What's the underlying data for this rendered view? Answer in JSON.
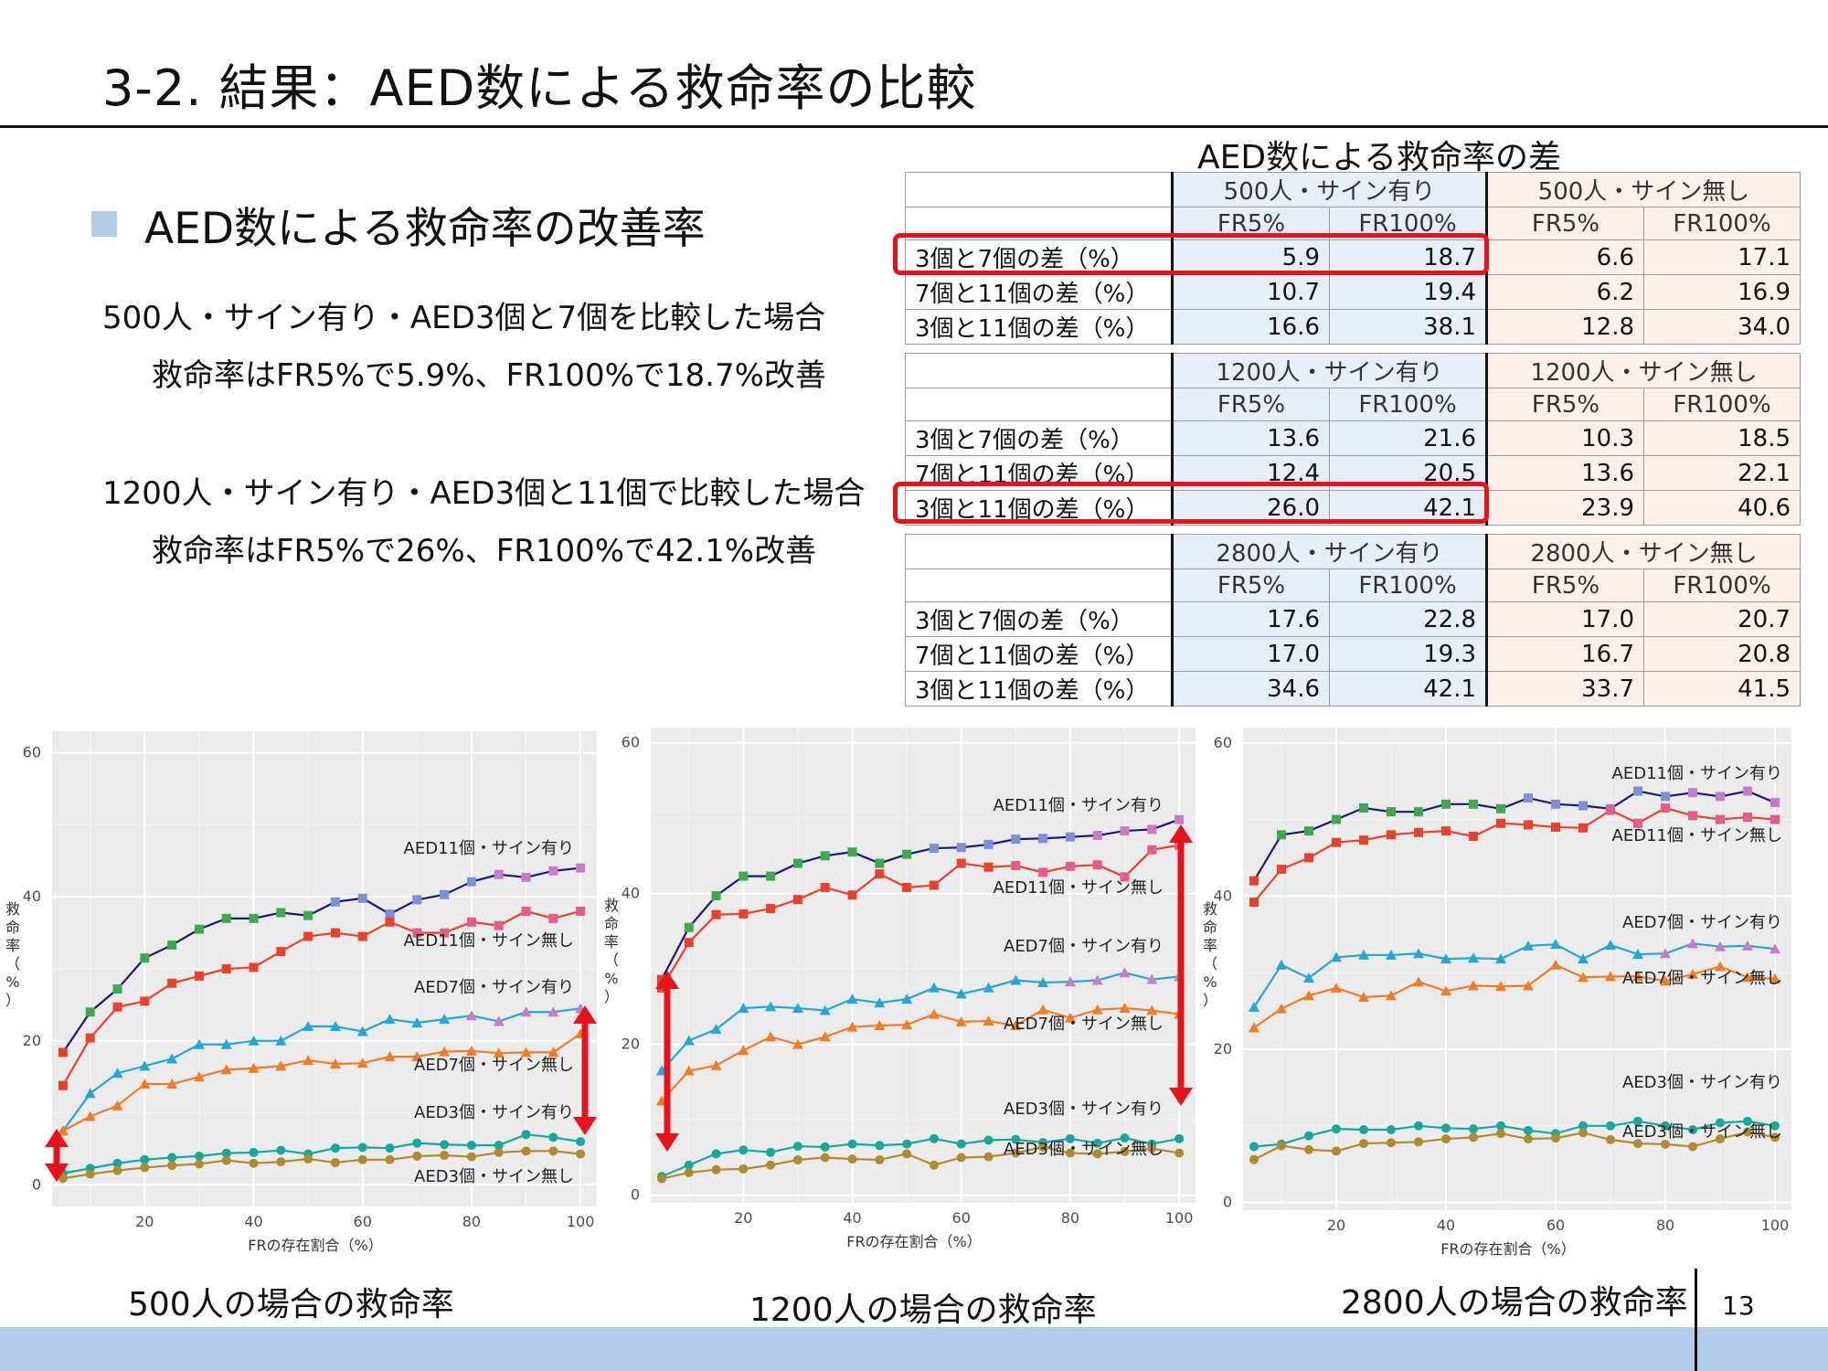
{
  "slide": {
    "title": "3-2. 結果：AED数による救命率の比較",
    "bullet": "AED数による救命率の改善率",
    "paragraphs": [
      "500人・サイン有り・AED3個と7個を比較した場合",
      "救命率はFR5%で5.9%、FR100%で18.7%改善",
      "1200人・サイン有り・AED3個と11個で比較した場合",
      "救命率はFR5%で26%、FR100%で42.1%改善"
    ],
    "page_number": "13",
    "colors": {
      "footer_band": "#b4cbe8",
      "highlight": "#e8121b",
      "table_blue": "#e8eef7",
      "table_pink": "#fdf0eb"
    }
  },
  "table": {
    "title": "AED数による救命率の差",
    "sub_headers": [
      "FR5%",
      "FR100%",
      "FR5%",
      "FR100%"
    ],
    "blocks": [
      {
        "groups": [
          "500人・サイン有り",
          "500人・サイン無し"
        ],
        "rows": [
          {
            "label": "3個と7個の差（%）",
            "values": [
              "5.9",
              "18.7",
              "6.6",
              "17.1"
            ]
          },
          {
            "label": "7個と11個の差（%）",
            "values": [
              "10.7",
              "19.4",
              "6.2",
              "16.9"
            ]
          },
          {
            "label": "3個と11個の差（%）",
            "values": [
              "16.6",
              "38.1",
              "12.8",
              "34.0"
            ]
          }
        ]
      },
      {
        "groups": [
          "1200人・サイン有り",
          "1200人・サイン無し"
        ],
        "rows": [
          {
            "label": "3個と7個の差（%）",
            "values": [
              "13.6",
              "21.6",
              "10.3",
              "18.5"
            ]
          },
          {
            "label": "7個と11個の差（%）",
            "values": [
              "12.4",
              "20.5",
              "13.6",
              "22.1"
            ]
          },
          {
            "label": "3個と11個の差（%）",
            "values": [
              "26.0",
              "42.1",
              "23.9",
              "40.6"
            ]
          }
        ]
      },
      {
        "groups": [
          "2800人・サイン有り",
          "2800人・サイン無し"
        ],
        "rows": [
          {
            "label": "3個と7個の差（%）",
            "values": [
              "17.6",
              "22.8",
              "17.0",
              "20.7"
            ]
          },
          {
            "label": "7個と11個の差（%）",
            "values": [
              "17.0",
              "19.3",
              "16.7",
              "20.8"
            ]
          },
          {
            "label": "3個と11個の差（%）",
            "values": [
              "34.6",
              "42.1",
              "33.7",
              "41.5"
            ]
          }
        ]
      }
    ]
  },
  "captions": [
    "500人の場合の救命率",
    "1200人の場合の救命率",
    "2800人の場合の救命率"
  ],
  "chart_data": [
    {
      "type": "line",
      "xlabel": "FRの存在割合（%）",
      "ylabel": "救命率（%）",
      "xlim": [
        3,
        103
      ],
      "ylim": [
        -3,
        63
      ],
      "xticks": [
        20,
        40,
        60,
        80,
        100
      ],
      "yticks": [
        0,
        20,
        40,
        60
      ],
      "grid": true,
      "x": [
        5,
        10,
        15,
        20,
        25,
        30,
        35,
        40,
        45,
        50,
        55,
        60,
        65,
        70,
        75,
        80,
        85,
        90,
        95,
        100
      ],
      "series": [
        {
          "name": "AED11個・サイン有り",
          "color": "#1a1a72",
          "markerColor": "#3daa4e",
          "marker": "square",
          "values": [
            18.4,
            24,
            27.2,
            31.5,
            33.3,
            35.5,
            37,
            37,
            37.8,
            37.4,
            39.3,
            39.8,
            37.6,
            39.6,
            40.3,
            42.1,
            43.1,
            42.7,
            43.6,
            44
          ]
        },
        {
          "name": "AED11個・サイン無し",
          "color": "#e8412c",
          "markerColor": "#e8412c",
          "marker": "square",
          "values": [
            13.8,
            20.4,
            24.7,
            25.5,
            28,
            29,
            30,
            30.2,
            32.4,
            34.5,
            35,
            34.5,
            36.5,
            35,
            35,
            36.5,
            36,
            38,
            37,
            38
          ]
        },
        {
          "name": "AED7個・サイン有り",
          "color": "#24a6d6",
          "markerColor": "#24a6d6",
          "marker": "triangle",
          "values": [
            7.5,
            12.7,
            15.5,
            16.5,
            17.5,
            19.5,
            19.5,
            20,
            20,
            22,
            22,
            21.3,
            23,
            22.5,
            23,
            23.5,
            22.7,
            24,
            24,
            24.5
          ]
        },
        {
          "name": "AED7個・サイン無し",
          "color": "#f07c27",
          "markerColor": "#f07c27",
          "marker": "triangle",
          "values": [
            7.5,
            9.5,
            11,
            14,
            14,
            15,
            16,
            16.2,
            16.5,
            17.3,
            16.8,
            16.9,
            17.8,
            17.8,
            18.5,
            18.6,
            18.3,
            18.4,
            18.4,
            21
          ]
        },
        {
          "name": "AED3個・サイン有り",
          "color": "#16a89a",
          "markerColor": "#16a89a",
          "marker": "circle",
          "values": [
            1.6,
            2.3,
            3,
            3.5,
            3.8,
            4,
            4.4,
            4.5,
            4.8,
            4.3,
            5.1,
            5.2,
            5.1,
            5.8,
            5.6,
            5.5,
            5.5,
            7,
            6.6,
            6
          ]
        },
        {
          "name": "AED3個・サイン無し",
          "color": "#b08a30",
          "markerColor": "#b08a30",
          "marker": "circle",
          "values": [
            0.9,
            1.5,
            2,
            2.4,
            2.7,
            2.9,
            3.4,
            3,
            3.2,
            3.6,
            3.1,
            3.5,
            3.5,
            4,
            4.1,
            3.9,
            4.5,
            4.7,
            4.7,
            4.3
          ]
        }
      ]
    },
    {
      "type": "line",
      "xlabel": "FRの存在割合（%）",
      "ylabel": "救命率（%）",
      "xlim": [
        3,
        103
      ],
      "ylim": [
        -1,
        62
      ],
      "xticks": [
        20,
        40,
        60,
        80,
        100
      ],
      "yticks": [
        0,
        20,
        40,
        60
      ],
      "grid": true,
      "x": [
        5,
        10,
        15,
        20,
        25,
        30,
        35,
        40,
        45,
        50,
        55,
        60,
        65,
        70,
        75,
        80,
        85,
        90,
        95,
        100
      ],
      "series": [
        {
          "name": "AED11個・サイン有り",
          "color": "#1a1a72",
          "markerColor": "#3daa4e",
          "marker": "square",
          "values": [
            28.6,
            35.5,
            39.7,
            42.3,
            42.3,
            44,
            45,
            45.5,
            44,
            45.2,
            46,
            46.1,
            46.5,
            47.2,
            47.3,
            47.5,
            47.7,
            48.3,
            48.5,
            49.8
          ]
        },
        {
          "name": "AED11個・サイン無し",
          "color": "#e8412c",
          "markerColor": "#e8412c",
          "marker": "square",
          "values": [
            27.5,
            33.5,
            37.2,
            37.3,
            38,
            39.2,
            40.8,
            39.8,
            42.6,
            40.8,
            41.1,
            44,
            43.5,
            43.7,
            42.8,
            43.6,
            43.8,
            42.2,
            45.8,
            46.4
          ]
        },
        {
          "name": "AED7個・サイン有り",
          "color": "#24a6d6",
          "markerColor": "#24a6d6",
          "marker": "triangle",
          "values": [
            16.5,
            20.5,
            22,
            24.8,
            25,
            24.8,
            24.5,
            26,
            25.5,
            26,
            27.5,
            26.7,
            27.5,
            28.5,
            28.2,
            28.3,
            28.5,
            29.5,
            28.6,
            29
          ]
        },
        {
          "name": "AED7個・サイン無し",
          "color": "#f07c27",
          "markerColor": "#f07c27",
          "marker": "triangle",
          "values": [
            12.5,
            16.5,
            17.2,
            19.2,
            21,
            20,
            21,
            22.3,
            22.5,
            22.6,
            24,
            23,
            23.1,
            22.5,
            24.6,
            23.5,
            24.6,
            24.8,
            24.5,
            24
          ]
        },
        {
          "name": "AED3個・サイン有り",
          "color": "#16a89a",
          "markerColor": "#16a89a",
          "marker": "circle",
          "values": [
            2.5,
            4,
            5.5,
            6,
            5.7,
            6.5,
            6.4,
            6.8,
            6.6,
            6.8,
            7.5,
            6.8,
            7.3,
            7.4,
            7,
            7.5,
            6.9,
            7.6,
            6.8,
            7.5
          ]
        },
        {
          "name": "AED3個・サイン無し",
          "color": "#b08a30",
          "markerColor": "#b08a30",
          "marker": "circle",
          "values": [
            2.2,
            3,
            3.4,
            3.5,
            4,
            4.7,
            5,
            4.8,
            4.7,
            5.5,
            4,
            5,
            5.1,
            5.6,
            6.4,
            5.6,
            5.5,
            5.8,
            6.2,
            5.6
          ]
        }
      ]
    },
    {
      "type": "line",
      "xlabel": "FRの存在割合（%）",
      "ylabel": "救命率（%）",
      "xlim": [
        3,
        103
      ],
      "ylim": [
        -1,
        62
      ],
      "xticks": [
        20,
        40,
        60,
        80,
        100
      ],
      "yticks": [
        0,
        20,
        40,
        60
      ],
      "grid": true,
      "x": [
        5,
        10,
        15,
        20,
        25,
        30,
        35,
        40,
        45,
        50,
        55,
        60,
        65,
        70,
        75,
        80,
        85,
        90,
        95,
        100
      ],
      "series": [
        {
          "name": "AED11個・サイン有り",
          "color": "#1a1a72",
          "markerColor": "#3daa4e",
          "marker": "square",
          "values": [
            42,
            48,
            48.5,
            50,
            51.5,
            51,
            51,
            52,
            52,
            51.4,
            52.8,
            52,
            51.8,
            51.4,
            53.7,
            53,
            53.5,
            53,
            53.7,
            52.2
          ]
        },
        {
          "name": "AED11個・サイン無し",
          "color": "#e8412c",
          "markerColor": "#e8412c",
          "marker": "square",
          "values": [
            39.2,
            43.5,
            45,
            47,
            47.3,
            48,
            48.3,
            48.5,
            47.8,
            49.5,
            49.3,
            49,
            48.9,
            51.2,
            49.5,
            51.5,
            50.5,
            50,
            50.3,
            50
          ]
        },
        {
          "name": "AED7個・サイン有り",
          "color": "#24a6d6",
          "markerColor": "#24a6d6",
          "marker": "triangle",
          "values": [
            25.5,
            31,
            29.3,
            32,
            32.3,
            32.3,
            32.5,
            31.8,
            31.9,
            31.8,
            33.5,
            33.7,
            31.8,
            33.6,
            32.4,
            32.5,
            33.8,
            33.4,
            33.5,
            33.1
          ]
        },
        {
          "name": "AED7個・サイン無し",
          "color": "#f07c27",
          "markerColor": "#f07c27",
          "marker": "triangle",
          "values": [
            22.8,
            25.3,
            27,
            28,
            26.8,
            27,
            28.8,
            27.6,
            28.3,
            28.2,
            28.3,
            31,
            29.4,
            29.5,
            29.5,
            28.9,
            29.8,
            30.8,
            29.4,
            29.2
          ]
        },
        {
          "name": "AED3個・サイン有り",
          "color": "#16a89a",
          "markerColor": "#16a89a",
          "marker": "circle",
          "values": [
            7.3,
            7.6,
            8.7,
            9.6,
            9.5,
            9.5,
            10,
            9.7,
            9.6,
            10,
            9.4,
            9,
            10,
            10,
            10.6,
            10,
            9.5,
            10.4,
            10.6,
            10
          ]
        },
        {
          "name": "AED3個・サイン無し",
          "color": "#b08a30",
          "markerColor": "#b08a30",
          "marker": "circle",
          "values": [
            5.6,
            7.4,
            6.9,
            6.7,
            7.7,
            7.8,
            7.9,
            8.3,
            8.5,
            9,
            8.3,
            8.4,
            9.1,
            8.2,
            7.7,
            7.6,
            7.3,
            8.3,
            9.2,
            8.5
          ]
        }
      ]
    }
  ]
}
